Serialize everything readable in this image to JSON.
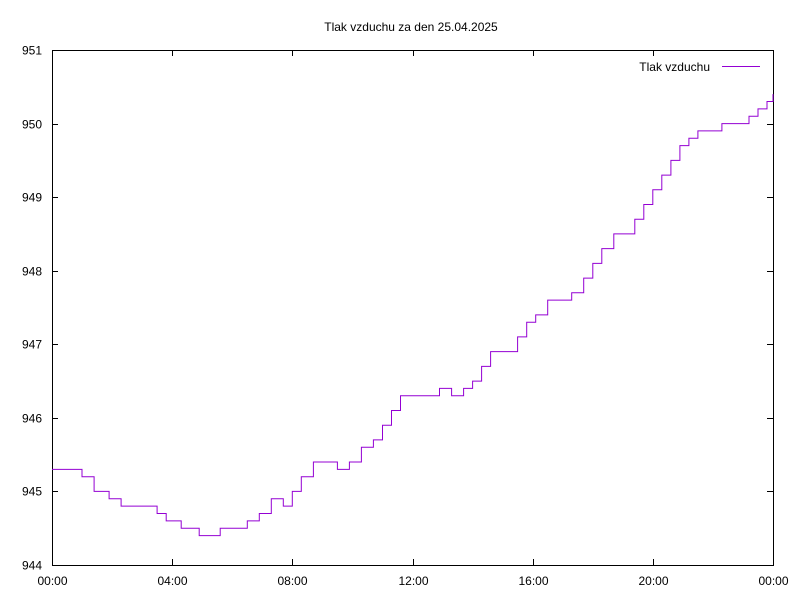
{
  "chart_data": {
    "type": "line",
    "title": "Tlak vzduchu za den 25.04.2025",
    "xlabel": "",
    "ylabel": "",
    "xlim": [
      0,
      24
    ],
    "ylim": [
      944,
      951
    ],
    "x_ticks": [
      {
        "value": 0,
        "label": "00:00"
      },
      {
        "value": 4,
        "label": "04:00"
      },
      {
        "value": 8,
        "label": "08:00"
      },
      {
        "value": 12,
        "label": "12:00"
      },
      {
        "value": 16,
        "label": "16:00"
      },
      {
        "value": 20,
        "label": "20:00"
      },
      {
        "value": 24,
        "label": "00:00"
      }
    ],
    "y_ticks": [
      {
        "value": 944,
        "label": "944"
      },
      {
        "value": 945,
        "label": "945"
      },
      {
        "value": 946,
        "label": "946"
      },
      {
        "value": 947,
        "label": "947"
      },
      {
        "value": 948,
        "label": "948"
      },
      {
        "value": 949,
        "label": "949"
      },
      {
        "value": 950,
        "label": "950"
      },
      {
        "value": 951,
        "label": "951"
      }
    ],
    "grid": false,
    "legend": {
      "position": "top-right"
    },
    "series": [
      {
        "name": "Tlak vzduchu",
        "color": "#9400d3",
        "x": [
          0.0,
          0.3,
          0.85,
          1.0,
          1.4,
          1.9,
          2.3,
          2.6,
          3.1,
          3.5,
          3.8,
          4.3,
          4.6,
          4.9,
          5.3,
          5.6,
          6.1,
          6.5,
          6.9,
          7.3,
          7.7,
          8.0,
          8.3,
          8.7,
          9.0,
          9.5,
          9.9,
          10.3,
          10.7,
          11.0,
          11.3,
          11.6,
          11.9,
          12.3,
          12.6,
          12.9,
          13.3,
          13.7,
          14.0,
          14.3,
          14.6,
          15.0,
          15.5,
          15.8,
          16.1,
          16.5,
          16.9,
          17.3,
          17.7,
          18.0,
          18.3,
          18.7,
          19.0,
          19.4,
          19.7,
          20.0,
          20.3,
          20.6,
          20.9,
          21.2,
          21.5,
          21.9,
          22.3,
          22.6,
          22.9,
          23.2,
          23.5,
          23.8,
          24.0
        ],
        "y": [
          945.3,
          945.3,
          945.3,
          945.2,
          945.0,
          944.9,
          944.8,
          944.8,
          944.8,
          944.7,
          944.6,
          944.5,
          944.5,
          944.4,
          944.4,
          944.5,
          944.5,
          944.6,
          944.7,
          944.9,
          944.8,
          945.0,
          945.2,
          945.4,
          945.4,
          945.3,
          945.4,
          945.6,
          945.7,
          945.9,
          946.1,
          946.3,
          946.3,
          946.3,
          946.3,
          946.35,
          946.3,
          946.4,
          946.5,
          946.7,
          946.9,
          946.9,
          947.1,
          947.3,
          947.4,
          947.6,
          947.6,
          947.7,
          947.9,
          948.1,
          948.3,
          948.5,
          948.5,
          948.7,
          948.9,
          949.1,
          949.3,
          949.5,
          949.7,
          949.8,
          949.85,
          949.9,
          949.95,
          950.0,
          950.0,
          950.1,
          950.2,
          950.3,
          950.4
        ]
      }
    ]
  }
}
